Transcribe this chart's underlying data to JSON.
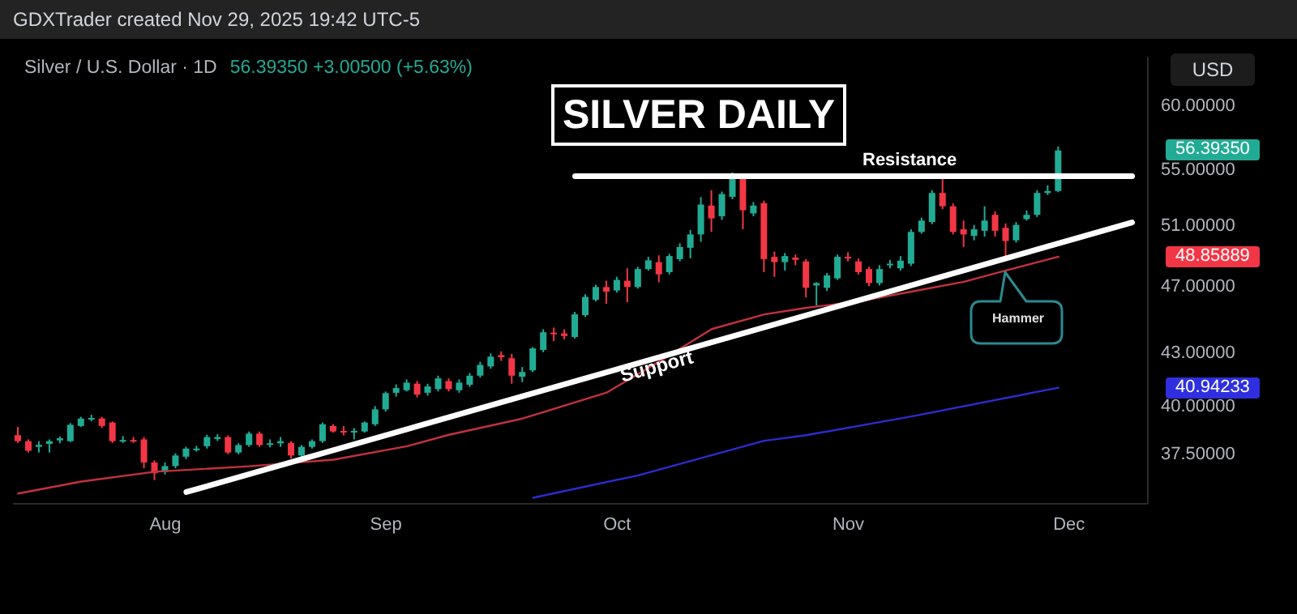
{
  "chart_data": {
    "type": "candlestick",
    "title": "SILVER DAILY",
    "subtitle": "Silver / U.S. Dollar · 1D",
    "ylabel": "USD",
    "log": true,
    "categories": [
      null,
      null,
      null,
      null,
      null,
      null,
      null,
      null,
      null,
      null,
      null,
      null,
      null,
      null,
      "Aug",
      null,
      null,
      null,
      null,
      null,
      null,
      null,
      null,
      null,
      null,
      null,
      null,
      null,
      null,
      null,
      null,
      null,
      null,
      null,
      null,
      "Sep",
      null,
      null,
      null,
      null,
      null,
      null,
      null,
      null,
      null,
      null,
      null,
      null,
      null,
      null,
      null,
      null,
      null,
      null,
      null,
      null,
      null,
      "Oct",
      null,
      null,
      null,
      null,
      null,
      null,
      null,
      null,
      null,
      null,
      null,
      null,
      null,
      null,
      null,
      null,
      null,
      null,
      null,
      null,
      null,
      "Nov",
      null,
      null,
      null,
      null,
      null,
      null,
      null,
      null,
      null,
      null,
      null,
      null,
      null,
      null,
      null,
      null,
      null,
      null,
      null,
      null,
      "Dec",
      null,
      null,
      null,
      null,
      null,
      null,
      null
    ],
    "ohlc": [
      [
        38.4,
        38.83,
        38.0,
        38.09
      ],
      [
        38.09,
        38.18,
        37.51,
        37.6
      ],
      [
        37.8,
        38.09,
        37.51,
        37.9
      ],
      [
        37.95,
        38.18,
        37.51,
        38.09
      ],
      [
        38.13,
        38.33,
        37.98,
        38.24
      ],
      [
        38.09,
        39.03,
        38.04,
        38.94
      ],
      [
        38.88,
        39.36,
        38.83,
        39.27
      ],
      [
        39.27,
        39.47,
        39.12,
        39.3
      ],
      [
        39.27,
        39.36,
        38.77,
        38.88
      ],
      [
        39.06,
        39.12,
        38.0,
        38.09
      ],
      [
        38.12,
        38.35,
        38.0,
        38.15
      ],
      [
        38.15,
        38.3,
        38.0,
        38.12
      ],
      [
        38.18,
        38.3,
        36.72,
        37.01
      ],
      [
        37.01,
        37.12,
        36.14,
        36.48
      ],
      [
        36.54,
        37.01,
        36.42,
        36.83
      ],
      [
        36.83,
        37.47,
        36.72,
        37.36
      ],
      [
        37.3,
        37.8,
        37.18,
        37.71
      ],
      [
        37.68,
        37.85,
        37.55,
        37.71
      ],
      [
        37.83,
        38.42,
        37.71,
        38.3
      ],
      [
        38.2,
        38.45,
        38.1,
        38.3
      ],
      [
        38.3,
        38.39,
        37.42,
        37.51
      ],
      [
        37.51,
        37.98,
        37.42,
        37.89
      ],
      [
        37.89,
        38.59,
        37.8,
        38.48
      ],
      [
        38.48,
        38.59,
        37.8,
        37.89
      ],
      [
        37.95,
        38.18,
        37.77,
        37.98
      ],
      [
        37.98,
        38.3,
        37.8,
        38.09
      ],
      [
        38.0,
        38.09,
        37.21,
        37.36
      ],
      [
        37.36,
        37.89,
        37.12,
        37.8
      ],
      [
        37.8,
        38.18,
        37.71,
        38.09
      ],
      [
        38.09,
        39.06,
        38.0,
        38.97
      ],
      [
        38.88,
        38.97,
        38.53,
        38.59
      ],
      [
        38.62,
        38.88,
        38.39,
        38.56
      ],
      [
        38.56,
        38.77,
        38.18,
        38.62
      ],
      [
        38.59,
        39.12,
        38.53,
        39.06
      ],
      [
        38.97,
        39.94,
        38.88,
        39.76
      ],
      [
        39.76,
        40.73,
        39.65,
        40.64
      ],
      [
        40.66,
        41.12,
        40.45,
        40.92
      ],
      [
        40.8,
        41.4,
        40.73,
        41.22
      ],
      [
        41.16,
        41.31,
        40.41,
        40.56
      ],
      [
        40.66,
        41.16,
        40.5,
        41.01
      ],
      [
        40.86,
        41.61,
        40.73,
        41.46
      ],
      [
        41.31,
        41.46,
        40.73,
        40.86
      ],
      [
        40.8,
        41.4,
        40.66,
        41.22
      ],
      [
        41.1,
        41.76,
        40.98,
        41.61
      ],
      [
        41.61,
        42.4,
        41.5,
        42.22
      ],
      [
        42.13,
        42.88,
        42.0,
        42.69
      ],
      [
        42.78,
        43.0,
        42.45,
        42.66
      ],
      [
        42.6,
        42.85,
        41.16,
        41.61
      ],
      [
        41.55,
        42.1,
        41.25,
        41.82
      ],
      [
        41.91,
        43.25,
        41.8,
        43.17
      ],
      [
        43.08,
        44.3,
        42.95,
        44.12
      ],
      [
        44.1,
        44.4,
        43.6,
        44.0
      ],
      [
        44.05,
        44.3,
        43.7,
        43.9
      ],
      [
        43.84,
        45.35,
        43.75,
        45.2
      ],
      [
        45.15,
        46.45,
        45.05,
        46.28
      ],
      [
        46.1,
        47.05,
        46.0,
        46.9
      ],
      [
        46.9,
        47.3,
        45.85,
        46.61
      ],
      [
        46.68,
        47.55,
        46.55,
        47.35
      ],
      [
        47.3,
        48.1,
        45.95,
        46.9
      ],
      [
        46.9,
        48.2,
        46.8,
        48.05
      ],
      [
        48.05,
        48.85,
        47.95,
        48.62
      ],
      [
        48.5,
        48.95,
        47.2,
        47.71
      ],
      [
        47.85,
        49.05,
        47.7,
        48.9
      ],
      [
        48.7,
        49.75,
        48.55,
        49.5
      ],
      [
        49.45,
        50.65,
        48.75,
        50.35
      ],
      [
        50.35,
        52.95,
        49.85,
        52.42
      ],
      [
        52.35,
        53.45,
        50.52,
        51.45
      ],
      [
        51.6,
        53.35,
        51.35,
        53.17
      ],
      [
        52.97,
        54.75,
        52.8,
        54.35
      ],
      [
        54.27,
        54.55,
        50.7,
        52.02
      ],
      [
        51.8,
        52.6,
        51.6,
        52.35
      ],
      [
        52.52,
        52.7,
        47.85,
        48.7
      ],
      [
        48.85,
        49.2,
        47.55,
        48.5
      ],
      [
        48.5,
        49.1,
        47.95,
        48.9
      ],
      [
        48.8,
        49.0,
        48.3,
        48.65
      ],
      [
        48.55,
        48.7,
        46.25,
        46.85
      ],
      [
        47.0,
        47.2,
        45.75,
        47.15
      ],
      [
        46.85,
        47.8,
        46.65,
        47.64
      ],
      [
        47.45,
        49.0,
        47.35,
        48.85
      ],
      [
        48.85,
        49.15,
        48.55,
        48.75
      ],
      [
        48.55,
        48.75,
        47.7,
        47.85
      ],
      [
        48.05,
        48.2,
        46.95,
        47.15
      ],
      [
        47.15,
        48.3,
        47.0,
        48.05
      ],
      [
        48.3,
        48.65,
        48.1,
        48.4
      ],
      [
        48.1,
        48.9,
        47.95,
        48.6
      ],
      [
        48.4,
        50.7,
        48.25,
        50.52
      ],
      [
        50.52,
        51.5,
        50.4,
        51.3
      ],
      [
        51.2,
        53.45,
        51.05,
        53.25
      ],
      [
        53.25,
        54.27,
        52.1,
        52.3
      ],
      [
        52.3,
        52.5,
        50.35,
        50.52
      ],
      [
        50.7,
        51.3,
        49.5,
        50.35
      ],
      [
        50.25,
        51.0,
        49.95,
        50.7
      ],
      [
        50.6,
        52.3,
        50.2,
        51.3
      ],
      [
        51.7,
        51.95,
        50.2,
        50.6
      ],
      [
        50.8,
        51.1,
        48.75,
        49.9
      ],
      [
        49.95,
        51.2,
        49.8,
        51.0
      ],
      [
        51.4,
        52.0,
        51.3,
        51.7
      ],
      [
        51.7,
        53.45,
        51.55,
        53.25
      ],
      [
        53.25,
        53.8,
        53.1,
        53.3885
      ],
      [
        53.3885,
        56.7,
        53.3,
        56.3935
      ],
      null,
      null,
      null,
      null,
      null,
      null,
      null,
      null
    ],
    "colors": [
      "#f23645",
      "#f23645",
      "#22ab94",
      "#22ab94",
      "#22ab94",
      "#22ab94",
      "#22ab94",
      "#22ab94",
      "#f23645",
      "#f23645",
      "#22ab94",
      "#f23645",
      "#f23645",
      "#f23645",
      "#22ab94",
      "#22ab94",
      "#22ab94",
      "#22ab94",
      "#22ab94",
      "#22ab94",
      "#f23645",
      "#22ab94",
      "#22ab94",
      "#f23645",
      "#22ab94",
      "#22ab94",
      "#f23645",
      "#22ab94",
      "#22ab94",
      "#22ab94",
      "#f23645",
      "#f23645",
      "#22ab94",
      "#22ab94",
      "#22ab94",
      "#22ab94",
      "#22ab94",
      "#22ab94",
      "#f23645",
      "#22ab94",
      "#22ab94",
      "#f23645",
      "#22ab94",
      "#22ab94",
      "#22ab94",
      "#22ab94",
      "#f23645",
      "#f23645",
      "#22ab94",
      "#22ab94",
      "#22ab94",
      "#f23645",
      "#f23645",
      "#22ab94",
      "#22ab94",
      "#22ab94",
      "#f23645",
      "#22ab94",
      "#f23645",
      "#22ab94",
      "#22ab94",
      "#f23645",
      "#22ab94",
      "#22ab94",
      "#22ab94",
      "#22ab94",
      "#f23645",
      "#22ab94",
      "#22ab94",
      "#f23645",
      "#22ab94",
      "#f23645",
      "#f23645",
      "#22ab94",
      "#f23645",
      "#f23645",
      "#22ab94",
      "#22ab94",
      "#22ab94",
      "#f23645",
      "#f23645",
      "#f23645",
      "#22ab94",
      "#22ab94",
      "#22ab94",
      "#22ab94",
      "#22ab94",
      "#22ab94",
      "#f23645",
      "#f23645",
      "#f23645",
      "#22ab94",
      "#22ab94",
      "#f23645",
      "#f23645",
      "#22ab94",
      "#22ab94",
      "#22ab94",
      "#22ab94",
      "#22ab94",
      null,
      null,
      null,
      null,
      null,
      null,
      null,
      null
    ],
    "series": [
      {
        "type": "line",
        "color": "#c2323f",
        "values": [
          35.49,
          null,
          null,
          null,
          null,
          null,
          36.07,
          null,
          null,
          null,
          null,
          null,
          null,
          36.55,
          null,
          null,
          null,
          null,
          null,
          null,
          null,
          null,
          36.82,
          null,
          null,
          null,
          null,
          null,
          null,
          null,
          37.15,
          null,
          null,
          null,
          null,
          null,
          null,
          37.83,
          null,
          null,
          null,
          38.42,
          null,
          null,
          null,
          null,
          null,
          null,
          39.27,
          null,
          null,
          null,
          null,
          null,
          null,
          null,
          40.67,
          null,
          null,
          null,
          null,
          42.41,
          null,
          null,
          null,
          null,
          44.31,
          null,
          null,
          null,
          null,
          45.2,
          null,
          null,
          null,
          45.6,
          null,
          null,
          null,
          null,
          46.0,
          null,
          null,
          null,
          null,
          46.61,
          null,
          null,
          null,
          null,
          47.23,
          null,
          null,
          null,
          47.96,
          null,
          null,
          null,
          null,
          48.85889,
          null,
          null,
          null,
          null,
          null,
          null,
          null,
          null
        ]
      },
      {
        "type": "line",
        "color": "#2c2ccf",
        "values": [
          null,
          null,
          null,
          null,
          null,
          null,
          null,
          null,
          null,
          null,
          null,
          null,
          null,
          null,
          null,
          null,
          null,
          null,
          null,
          null,
          null,
          null,
          null,
          null,
          null,
          null,
          null,
          null,
          null,
          null,
          null,
          null,
          null,
          null,
          null,
          null,
          null,
          null,
          null,
          null,
          null,
          null,
          null,
          null,
          null,
          null,
          null,
          null,
          null,
          35.29,
          null,
          null,
          null,
          null,
          null,
          null,
          null,
          null,
          null,
          36.37,
          null,
          null,
          null,
          null,
          null,
          null,
          null,
          null,
          null,
          null,
          null,
          38.11,
          null,
          null,
          null,
          38.4,
          null,
          null,
          null,
          null,
          null,
          null,
          null,
          null,
          null,
          39.38,
          null,
          null,
          null,
          null,
          null,
          null,
          null,
          null,
          null,
          null,
          null,
          null,
          null,
          40.94233,
          null,
          null,
          null,
          null,
          null,
          null,
          null,
          null
        ]
      },
      {
        "type": "line",
        "color": "#ffffff",
        "values": [
          null,
          null,
          null,
          null,
          null,
          null,
          null,
          null,
          null,
          null,
          null,
          null,
          null,
          null,
          null,
          null,
          35.56,
          null,
          null,
          null,
          null,
          null,
          null,
          null,
          null,
          null,
          null,
          null,
          null,
          null,
          null,
          null,
          null,
          null,
          null,
          null,
          null,
          null,
          null,
          null,
          null,
          null,
          null,
          null,
          null,
          null,
          null,
          null,
          null,
          null,
          null,
          null,
          null,
          null,
          null,
          null,
          null,
          null,
          null,
          null,
          null,
          null,
          null,
          null,
          null,
          null,
          null,
          null,
          null,
          null,
          null,
          null,
          null,
          null,
          null,
          null,
          null,
          null,
          null,
          null,
          null,
          null,
          null,
          null,
          null,
          null,
          null,
          null,
          null,
          null,
          null,
          null,
          null,
          null,
          null,
          null,
          null,
          null,
          null,
          null,
          null,
          null,
          null,
          null,
          null,
          null,
          51.17,
          null
        ]
      },
      {
        "type": "line",
        "color": "#ffffff",
        "values": [
          null,
          null,
          null,
          null,
          null,
          null,
          null,
          null,
          null,
          null,
          null,
          null,
          null,
          null,
          null,
          null,
          null,
          null,
          null,
          null,
          null,
          null,
          null,
          null,
          null,
          null,
          null,
          null,
          null,
          null,
          null,
          null,
          null,
          null,
          null,
          null,
          null,
          null,
          null,
          null,
          null,
          null,
          null,
          null,
          null,
          null,
          null,
          null,
          null,
          null,
          null,
          null,
          null,
          54.47,
          null,
          null,
          null,
          null,
          null,
          null,
          null,
          null,
          null,
          null,
          null,
          null,
          null,
          null,
          null,
          null,
          null,
          null,
          null,
          null,
          null,
          null,
          null,
          null,
          null,
          null,
          null,
          null,
          null,
          null,
          null,
          null,
          null,
          null,
          null,
          null,
          null,
          null,
          null,
          null,
          null,
          null,
          null,
          null,
          null,
          null,
          null,
          null,
          null,
          null,
          null,
          null,
          54.47,
          null
        ]
      }
    ],
    "ylim": [
      35.0,
      64.0
    ],
    "yticks": [
      {
        "value": 37.5,
        "label": "37.50000"
      },
      {
        "value": 40,
        "label": "40.00000"
      },
      {
        "value": 43,
        "label": "43.00000"
      },
      {
        "value": 47,
        "label": "47.00000"
      },
      {
        "value": 51,
        "label": "51.00000"
      },
      {
        "value": 55,
        "label": "55.00000"
      },
      {
        "value": 60,
        "label": "60.00000"
      }
    ],
    "annotations": [
      "GDXTrader created Nov 29, 2025 19:42 UTC-5",
      "56.39350 +3.00500 (+5.63%)",
      "Resistance",
      "Support",
      "Hammer",
      "56.39350",
      "48.85889",
      "40.94233"
    ]
  }
}
